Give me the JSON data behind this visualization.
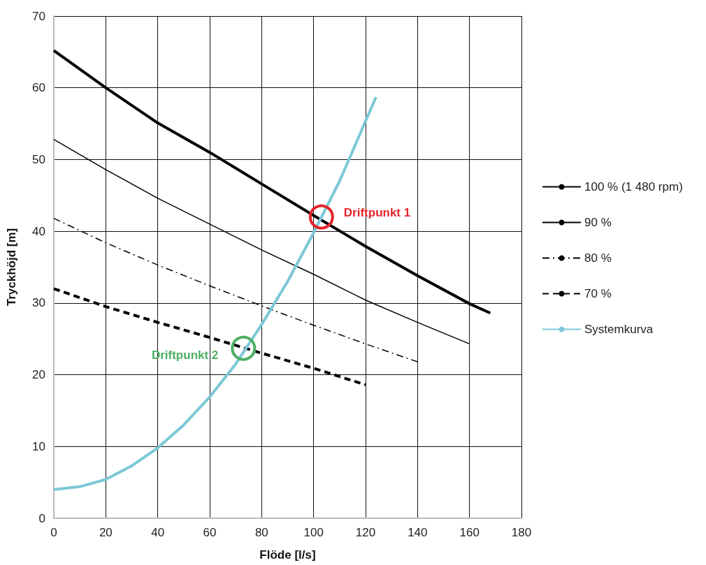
{
  "chart_data": {
    "type": "line",
    "xlabel": "Flöde [l/s]",
    "ylabel": "Tryckhöjd [m]",
    "xlim": [
      0,
      180
    ],
    "xticks": [
      0,
      20,
      40,
      60,
      80,
      100,
      120,
      140,
      160,
      180
    ],
    "ylim": [
      0,
      70
    ],
    "yticks": [
      0,
      10,
      20,
      30,
      40,
      50,
      60,
      70
    ],
    "grid": true,
    "legend": "right",
    "series": [
      {
        "name": "100 % (1 480 rpm)",
        "color": "#000000",
        "line_style": "solid",
        "x": [
          0,
          20,
          40,
          60,
          80,
          100,
          120,
          140,
          160,
          168
        ],
        "values": [
          65.2,
          60,
          55.1,
          51,
          46.6,
          42.2,
          37.9,
          33.8,
          29.9,
          28.6
        ]
      },
      {
        "name": "90 %",
        "color": "#000000",
        "line_style": "solid",
        "x": [
          0,
          20,
          40,
          60,
          80,
          100,
          120,
          140,
          160
        ],
        "values": [
          52.8,
          48.6,
          44.6,
          41,
          37.4,
          34,
          30.4,
          27.3,
          24.3
        ]
      },
      {
        "name": "80 %",
        "color": "#000000",
        "line_style": "dashdot",
        "x": [
          0,
          20,
          40,
          60,
          80,
          100,
          120,
          140
        ],
        "values": [
          41.8,
          38.4,
          35.3,
          32.4,
          29.6,
          26.9,
          24.3,
          21.8
        ]
      },
      {
        "name": "70 %",
        "color": "#000000",
        "line_style": "dashed",
        "x": [
          0,
          20,
          40,
          60,
          80,
          100,
          120
        ],
        "values": [
          32,
          29.5,
          27.3,
          25.2,
          23,
          20.9,
          18.6
        ]
      },
      {
        "name": "Systemkurva",
        "color": "#7cc8d6",
        "line_style": "solid",
        "x": [
          0,
          10,
          20,
          30,
          40,
          50,
          60,
          70,
          80,
          90,
          100,
          110,
          124
        ],
        "values": [
          4,
          4.4,
          5.4,
          7.3,
          9.8,
          13,
          16.9,
          21.5,
          27,
          33,
          39.8,
          47,
          58.7
        ]
      }
    ],
    "annotations": [
      {
        "text": "Driftpunkt 1",
        "x": 103,
        "y": 42
      },
      {
        "text": "Driftpunkt 2",
        "x": 73,
        "y": 23.7
      }
    ]
  }
}
